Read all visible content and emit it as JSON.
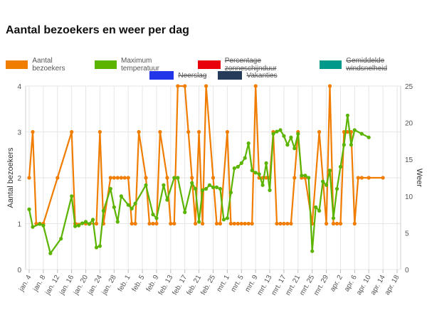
{
  "title": "Aantal bezoekers en weer per dag",
  "legend": [
    {
      "label": "Aantal bezoekers",
      "color": "#f07d00",
      "hidden": false
    },
    {
      "label": "Maximum temperatuur",
      "color": "#5bb400",
      "hidden": false
    },
    {
      "label": "Percentage zonneschijnduur",
      "color": "#e8000a",
      "hidden": true
    },
    {
      "label": "Gemiddelde windsnelheid",
      "color": "#00998a",
      "hidden": true
    },
    {
      "label": "Neerslag",
      "color": "#2235e8",
      "hidden": true
    },
    {
      "label": "Vakanties",
      "color": "#263a5a",
      "hidden": true
    }
  ],
  "chart_data": {
    "type": "line",
    "title": "Aantal bezoekers en weer per dag",
    "ylabel": "Aantal bezoekers",
    "y2label": "Weer",
    "ylim": [
      0,
      4
    ],
    "y2lim": [
      0,
      25
    ],
    "yticks": [
      "0",
      "1",
      "2",
      "3",
      "4"
    ],
    "y2ticks": [
      "0",
      "5",
      "10",
      "15",
      "20",
      "25"
    ],
    "x_tick_labels": [
      "jan. 4",
      "jan. 8",
      "jan. 12",
      "jan. 16",
      "jan. 20",
      "jan. 24",
      "jan. 28",
      "feb. 1",
      "feb. 5",
      "feb. 9",
      "feb. 13",
      "feb. 17",
      "feb. 21",
      "feb. 25",
      "mrt. 1",
      "mrt. 5",
      "mrt. 9",
      "mrt. 13",
      "mrt. 17",
      "mrt. 21",
      "mrt. 25",
      "mrt. 29",
      "apr. 2",
      "apr. 6",
      "apr. 10",
      "apr. 14",
      "apr. 18"
    ],
    "grid": true,
    "series": [
      {
        "name": "Aantal bezoekers",
        "axis": "left",
        "color": "#f07d00",
        "points": [
          [
            "2021-01-04",
            2
          ],
          [
            "2021-01-05",
            3
          ],
          [
            "2021-01-06",
            1
          ],
          [
            "2021-01-07",
            1
          ],
          [
            "2021-01-08",
            1
          ],
          [
            "2021-01-12",
            2
          ],
          [
            "2021-01-16",
            3
          ],
          [
            "2021-01-17",
            1
          ],
          [
            "2021-01-20",
            1
          ],
          [
            "2021-01-23",
            1
          ],
          [
            "2021-01-24",
            3
          ],
          [
            "2021-01-25",
            1
          ],
          [
            "2021-01-27",
            2
          ],
          [
            "2021-01-28",
            2
          ],
          [
            "2021-01-29",
            2
          ],
          [
            "2021-01-30",
            2
          ],
          [
            "2021-01-31",
            2
          ],
          [
            "2021-02-01",
            2
          ],
          [
            "2021-02-02",
            1
          ],
          [
            "2021-02-03",
            1
          ],
          [
            "2021-02-04",
            3
          ],
          [
            "2021-02-06",
            2
          ],
          [
            "2021-02-07",
            1
          ],
          [
            "2021-02-08",
            1
          ],
          [
            "2021-02-09",
            1
          ],
          [
            "2021-02-10",
            3
          ],
          [
            "2021-02-12",
            2
          ],
          [
            "2021-02-13",
            1
          ],
          [
            "2021-02-14",
            1
          ],
          [
            "2021-02-15",
            4
          ],
          [
            "2021-02-17",
            4
          ],
          [
            "2021-02-18",
            3
          ],
          [
            "2021-02-19",
            2
          ],
          [
            "2021-02-20",
            1
          ],
          [
            "2021-02-21",
            3
          ],
          [
            "2021-02-22",
            1
          ],
          [
            "2021-02-23",
            4
          ],
          [
            "2021-02-25",
            2
          ],
          [
            "2021-02-26",
            1
          ],
          [
            "2021-02-27",
            1
          ],
          [
            "2021-03-01",
            3
          ],
          [
            "2021-03-02",
            1
          ],
          [
            "2021-03-03",
            1
          ],
          [
            "2021-03-04",
            1
          ],
          [
            "2021-03-05",
            1
          ],
          [
            "2021-03-06",
            1
          ],
          [
            "2021-03-07",
            1
          ],
          [
            "2021-03-08",
            1
          ],
          [
            "2021-03-09",
            4
          ],
          [
            "2021-03-10",
            2
          ],
          [
            "2021-03-11",
            2
          ],
          [
            "2021-03-12",
            2
          ],
          [
            "2021-03-13",
            2
          ],
          [
            "2021-03-14",
            3
          ],
          [
            "2021-03-15",
            1
          ],
          [
            "2021-03-16",
            1
          ],
          [
            "2021-03-17",
            1
          ],
          [
            "2021-03-18",
            1
          ],
          [
            "2021-03-19",
            1
          ],
          [
            "2021-03-20",
            2
          ],
          [
            "2021-03-21",
            3
          ],
          [
            "2021-03-22",
            2
          ],
          [
            "2021-03-23",
            2
          ],
          [
            "2021-03-25",
            1
          ],
          [
            "2021-03-27",
            3
          ],
          [
            "2021-03-29",
            1
          ],
          [
            "2021-03-30",
            4
          ],
          [
            "2021-03-31",
            1
          ],
          [
            "2021-04-01",
            1
          ],
          [
            "2021-04-02",
            1
          ],
          [
            "2021-04-03",
            3
          ],
          [
            "2021-04-04",
            3
          ],
          [
            "2021-04-05",
            3
          ],
          [
            "2021-04-06",
            1
          ],
          [
            "2021-04-07",
            2
          ],
          [
            "2021-04-08",
            2
          ],
          [
            "2021-04-10",
            2
          ],
          [
            "2021-04-14",
            2
          ]
        ]
      },
      {
        "name": "Maximum temperatuur",
        "axis": "right",
        "color": "#5bb400",
        "points": [
          [
            "2021-01-04",
            8.2
          ],
          [
            "2021-01-05",
            5.8
          ],
          [
            "2021-01-07",
            6.2
          ],
          [
            "2021-01-08",
            6.0
          ],
          [
            "2021-01-10",
            2.2
          ],
          [
            "2021-01-13",
            4.2
          ],
          [
            "2021-01-16",
            10.0
          ],
          [
            "2021-01-17",
            5.9
          ],
          [
            "2021-01-18",
            6.0
          ],
          [
            "2021-01-19",
            6.3
          ],
          [
            "2021-01-20",
            6.5
          ],
          [
            "2021-01-21",
            6.2
          ],
          [
            "2021-01-22",
            6.8
          ],
          [
            "2021-01-23",
            3.0
          ],
          [
            "2021-01-24",
            3.2
          ],
          [
            "2021-01-25",
            8.0
          ],
          [
            "2021-01-27",
            11.0
          ],
          [
            "2021-01-28",
            8.5
          ],
          [
            "2021-01-29",
            6.5
          ],
          [
            "2021-01-30",
            10.0
          ],
          [
            "2021-02-01",
            8.8
          ],
          [
            "2021-02-02",
            8.3
          ],
          [
            "2021-02-03",
            9.0
          ],
          [
            "2021-02-06",
            11.5
          ],
          [
            "2021-02-08",
            7.5
          ],
          [
            "2021-02-09",
            7.0
          ],
          [
            "2021-02-11",
            11.5
          ],
          [
            "2021-02-12",
            9.5
          ],
          [
            "2021-02-14",
            12.5
          ],
          [
            "2021-02-15",
            12.5
          ],
          [
            "2021-02-17",
            7.8
          ],
          [
            "2021-02-19",
            11.8
          ],
          [
            "2021-02-20",
            11.0
          ],
          [
            "2021-02-21",
            6.5
          ],
          [
            "2021-02-22",
            10.8
          ],
          [
            "2021-02-23",
            11.0
          ],
          [
            "2021-02-24",
            11.5
          ],
          [
            "2021-02-25",
            11.2
          ],
          [
            "2021-02-26",
            11.2
          ],
          [
            "2021-02-27",
            11.0
          ],
          [
            "2021-02-28",
            6.8
          ],
          [
            "2021-03-01",
            7.0
          ],
          [
            "2021-03-02",
            10.5
          ],
          [
            "2021-03-03",
            13.8
          ],
          [
            "2021-03-04",
            14.0
          ],
          [
            "2021-03-05",
            14.5
          ],
          [
            "2021-03-06",
            15.2
          ],
          [
            "2021-03-07",
            17.2
          ],
          [
            "2021-03-08",
            13.5
          ],
          [
            "2021-03-09",
            13.2
          ],
          [
            "2021-03-10",
            13.0
          ],
          [
            "2021-03-11",
            11.5
          ],
          [
            "2021-03-12",
            14.5
          ],
          [
            "2021-03-13",
            10.8
          ],
          [
            "2021-03-14",
            18.5
          ],
          [
            "2021-03-15",
            18.8
          ],
          [
            "2021-03-16",
            19.0
          ],
          [
            "2021-03-17",
            18.2
          ],
          [
            "2021-03-18",
            17.0
          ],
          [
            "2021-03-19",
            18.0
          ],
          [
            "2021-03-20",
            16.5
          ],
          [
            "2021-03-21",
            18.5
          ],
          [
            "2021-03-22",
            12.8
          ],
          [
            "2021-03-23",
            12.8
          ],
          [
            "2021-03-24",
            12.5
          ],
          [
            "2021-03-25",
            2.5
          ],
          [
            "2021-03-26",
            8.5
          ],
          [
            "2021-03-27",
            8.0
          ],
          [
            "2021-03-28",
            12.0
          ],
          [
            "2021-03-29",
            11.5
          ],
          [
            "2021-03-30",
            13.5
          ],
          [
            "2021-03-31",
            7.0
          ],
          [
            "2021-04-01",
            11.0
          ],
          [
            "2021-04-02",
            14.0
          ],
          [
            "2021-04-03",
            17.0
          ],
          [
            "2021-04-04",
            21.0
          ],
          [
            "2021-04-05",
            17.0
          ],
          [
            "2021-04-06",
            19.0
          ],
          [
            "2021-04-08",
            18.5
          ],
          [
            "2021-04-10",
            18.0
          ]
        ]
      }
    ]
  }
}
